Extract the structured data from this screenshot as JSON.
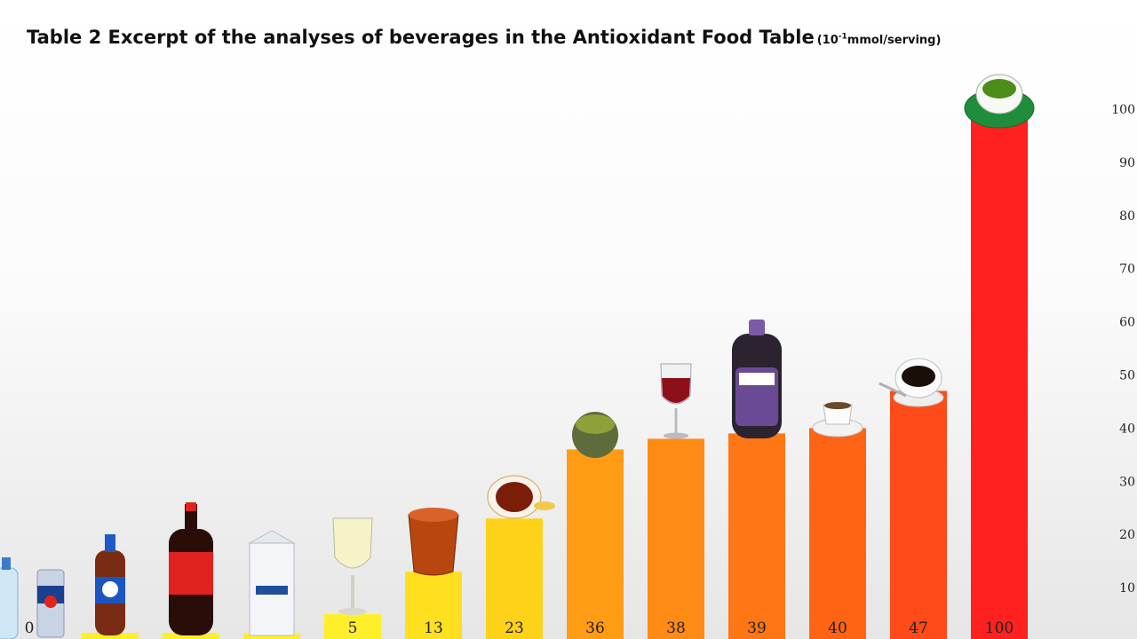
{
  "title": {
    "main": "Table 2 Excerpt of the analyses of beverages in the Antioxidant Food Table",
    "unit_prefix": "(10",
    "unit_exponent": "-1",
    "unit_suffix": "mmol/serving)"
  },
  "chart_data": {
    "type": "bar",
    "title": "Table 2 Excerpt of the analyses of beverages in the Antioxidant Food Table",
    "unit": "10^-1 mmol/serving",
    "categories": [
      "Water",
      "Red Bull",
      "Pepsi",
      "Coca-Cola",
      "Milk",
      "White wine",
      "Iced tea",
      "Black tea",
      "Green tea",
      "Red wine",
      "Grape juice",
      "Espresso",
      "Coffee",
      "Green tea (cup)"
    ],
    "values": [
      0,
      0,
      1,
      1,
      1,
      5,
      13,
      23,
      36,
      38,
      39,
      40,
      47,
      100
    ],
    "value_labels": [
      "",
      "0",
      "1",
      "1",
      "1",
      "5",
      "13",
      "23",
      "36",
      "38",
      "39",
      "40",
      "47",
      "100"
    ],
    "yticks": [
      "10",
      "20",
      "30",
      "40",
      "50",
      "60",
      "70",
      "80",
      "90",
      "100"
    ],
    "ylim": [
      0,
      100
    ],
    "grid": false,
    "legend": "none",
    "bar_colors": [
      "#ffffff",
      "#ffffff",
      "#ffee2a",
      "#ffee2a",
      "#ffee2a",
      "#ffee2a",
      "#ffe01e",
      "#ffd21a",
      "#ff9c14",
      "#ff8a14",
      "#ff7614",
      "#ff6414",
      "#ff4a1a",
      "#ff2020"
    ]
  }
}
